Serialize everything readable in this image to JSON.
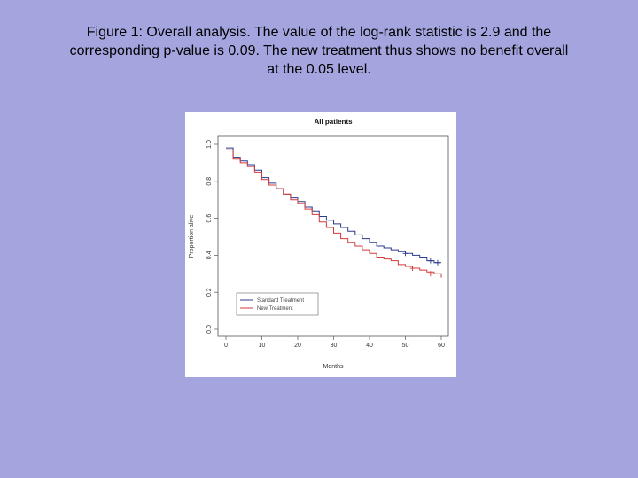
{
  "caption": {
    "line1": "Figure 1: Overall analysis. The value of the log-rank statistic is 2.9 and the",
    "line2": "corresponding p-value is 0.09. The new treatment thus shows no benefit overall",
    "line3": "at the 0.05 level."
  },
  "chart_data": {
    "type": "line",
    "title": "All patients",
    "xlabel": "Months",
    "ylabel": "Proportion alive",
    "xlim": [
      0,
      60
    ],
    "ylim": [
      0,
      1
    ],
    "xticks": [
      "0",
      "10",
      "20",
      "30",
      "40",
      "50",
      "60"
    ],
    "yticks": [
      "0.0",
      "0.2",
      "0.4",
      "0.6",
      "0.8",
      "1.0"
    ],
    "grid": false,
    "legend_position": "bottom-left",
    "series": [
      {
        "name": "Standard Treatment",
        "color": "#2b3a8c",
        "step": true,
        "x": [
          0,
          2,
          4,
          6,
          8,
          10,
          12,
          14,
          16,
          18,
          20,
          22,
          24,
          26,
          28,
          30,
          32,
          34,
          36,
          38,
          40,
          42,
          44,
          46,
          48,
          50,
          52,
          54,
          56,
          58,
          60
        ],
        "y": [
          0.98,
          0.93,
          0.91,
          0.89,
          0.86,
          0.82,
          0.79,
          0.76,
          0.73,
          0.71,
          0.69,
          0.66,
          0.64,
          0.61,
          0.59,
          0.57,
          0.55,
          0.53,
          0.51,
          0.49,
          0.47,
          0.45,
          0.44,
          0.43,
          0.42,
          0.41,
          0.4,
          0.39,
          0.37,
          0.36,
          0.36
        ]
      },
      {
        "name": "New Treatment",
        "color": "#d23a3a",
        "step": true,
        "x": [
          0,
          2,
          4,
          6,
          8,
          10,
          12,
          14,
          16,
          18,
          20,
          22,
          24,
          26,
          28,
          30,
          32,
          34,
          36,
          38,
          40,
          42,
          44,
          46,
          48,
          50,
          52,
          54,
          56,
          58,
          60
        ],
        "y": [
          0.97,
          0.92,
          0.9,
          0.88,
          0.85,
          0.81,
          0.78,
          0.76,
          0.73,
          0.7,
          0.68,
          0.65,
          0.62,
          0.58,
          0.55,
          0.52,
          0.49,
          0.47,
          0.45,
          0.43,
          0.41,
          0.39,
          0.38,
          0.37,
          0.35,
          0.34,
          0.33,
          0.32,
          0.31,
          0.3,
          0.28
        ]
      }
    ],
    "censor_marks": [
      {
        "series": 0,
        "x": [
          50,
          57,
          59
        ],
        "y": [
          0.41,
          0.37,
          0.36
        ]
      },
      {
        "series": 1,
        "x": [
          52,
          57
        ],
        "y": [
          0.33,
          0.3
        ]
      }
    ]
  }
}
